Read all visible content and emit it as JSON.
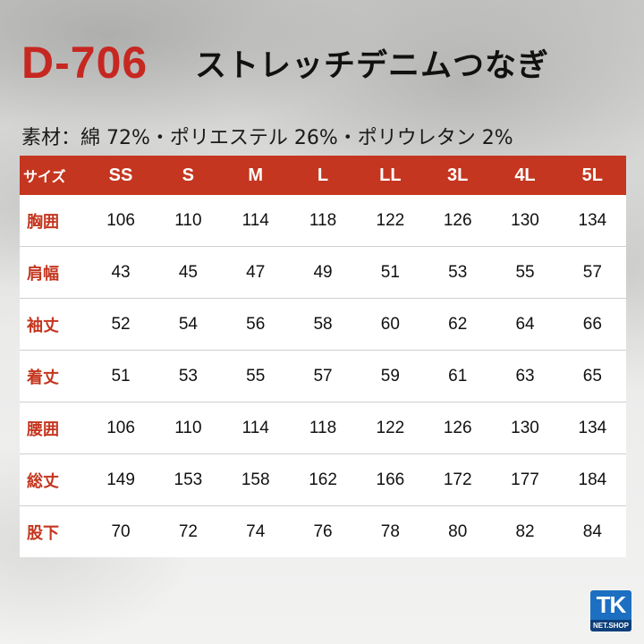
{
  "header": {
    "model": "D-706",
    "product_name": "ストレッチデニムつなぎ"
  },
  "material": "素材：綿 72%・ポリエステル 26%・ポリウレタン 2%",
  "size_table": {
    "header_label": "サイズ",
    "sizes": [
      "SS",
      "S",
      "M",
      "L",
      "LL",
      "3L",
      "4L",
      "5L"
    ],
    "rows": [
      {
        "label": "胸囲",
        "values": [
          "106",
          "110",
          "114",
          "118",
          "122",
          "126",
          "130",
          "134"
        ]
      },
      {
        "label": "肩幅",
        "values": [
          "43",
          "45",
          "47",
          "49",
          "51",
          "53",
          "55",
          "57"
        ]
      },
      {
        "label": "袖丈",
        "values": [
          "52",
          "54",
          "56",
          "58",
          "60",
          "62",
          "64",
          "66"
        ]
      },
      {
        "label": "着丈",
        "values": [
          "51",
          "53",
          "55",
          "57",
          "59",
          "61",
          "63",
          "65"
        ]
      },
      {
        "label": "腰囲",
        "values": [
          "106",
          "110",
          "114",
          "118",
          "122",
          "126",
          "130",
          "134"
        ]
      },
      {
        "label": "総丈",
        "values": [
          "149",
          "153",
          "158",
          "162",
          "166",
          "172",
          "177",
          "184"
        ]
      },
      {
        "label": "股下",
        "values": [
          "70",
          "72",
          "74",
          "76",
          "78",
          "80",
          "82",
          "84"
        ]
      }
    ]
  },
  "logo": {
    "main": "TK",
    "sub": "NET.SHOP"
  },
  "colors": {
    "accent": "#c4361f",
    "model_red": "#c62821",
    "logo_blue": "#1c6fc1"
  }
}
